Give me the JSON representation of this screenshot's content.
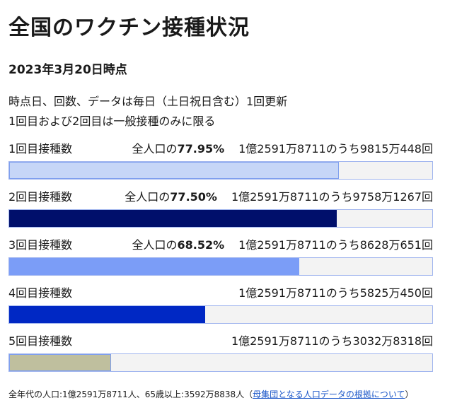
{
  "header": {
    "title": "全国のワクチン接種状況",
    "date": "2023年3月20日時点"
  },
  "notes": [
    "時点日、回数、データは毎日（土日祝日含む）1回更新",
    "1回目および2回目は一般接種のみに限る"
  ],
  "rows": [
    {
      "label": "1回目接種数",
      "share_prefix": "全人口の",
      "share": 77.95,
      "share_label": "77.95%",
      "count": "1億2591万8711のうち9815万448回",
      "color": "#c6d6f7",
      "border": "#7f9fee"
    },
    {
      "label": "2回目接種数",
      "share_prefix": "全人口の",
      "share": 77.5,
      "share_label": "77.50%",
      "count": "1億2591万8711のうち9758万1267回",
      "color": "#000f6b",
      "border": "#000f6b"
    },
    {
      "label": "3回目接種数",
      "share_prefix": "全人口の",
      "share": 68.52,
      "share_label": "68.52%",
      "count": "1億2591万8711のうち8628万651回",
      "color": "#7b9df7",
      "border": "#7b9df7"
    },
    {
      "label": "4回目接種数",
      "share": 46.3,
      "count": "1億2591万8711のうち5825万450回",
      "color": "#0028c4",
      "border": "#0028c4"
    },
    {
      "label": "5回目接種数",
      "share": 24.1,
      "count": "1億2591万8711のうち3032万8318回",
      "color": "#bfbf9e",
      "border": "#7f9fee"
    }
  ],
  "footer": {
    "text": "全年代の人口:1億2591万8711人、65歳以上:3592万8838人",
    "open": "（",
    "link": "母集団となる人口データの根拠について",
    "close": "）"
  }
}
